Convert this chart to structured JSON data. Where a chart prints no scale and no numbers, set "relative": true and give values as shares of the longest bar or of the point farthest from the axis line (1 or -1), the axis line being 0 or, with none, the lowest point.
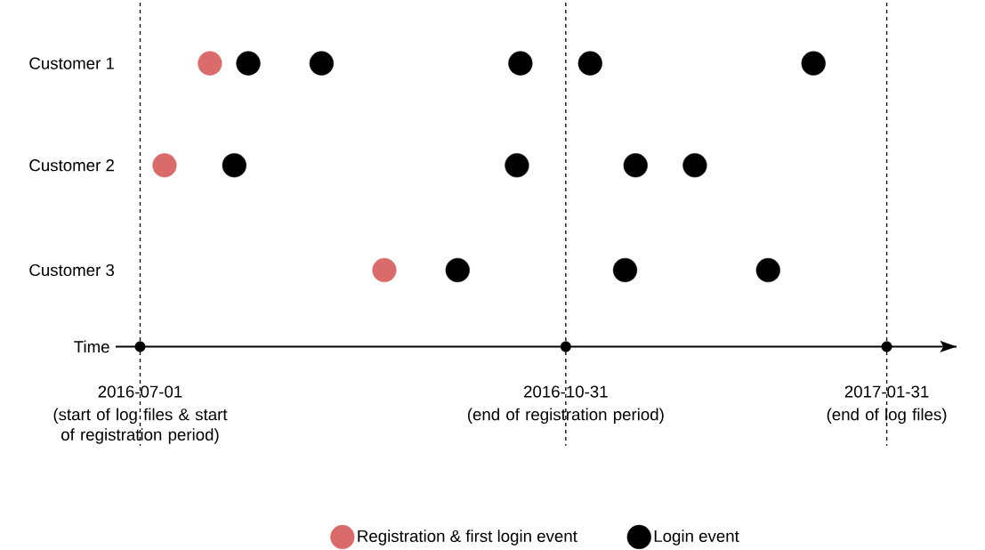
{
  "chart_data": {
    "type": "scatter",
    "relative": true,
    "xlabel": "Time",
    "xlim": [
      "2016-06-24",
      "2017-02-20"
    ],
    "xticks": [
      {
        "value": "2016-07-01",
        "label": "2016-07-01"
      },
      {
        "value": "2016-10-31",
        "label": "2016-10-31"
      },
      {
        "value": "2017-01-31",
        "label": "2017-01-31"
      }
    ],
    "series": [
      {
        "name": "Registration & first login event",
        "color": "#d96b6b",
        "x": [
          "2016-07-21",
          "2016-07-08",
          "2016-09-09"
        ],
        "values": [
          1,
          0.64,
          0.27
        ]
      },
      {
        "name": "Login event",
        "color": "#000000",
        "x": [
          "2016-08-01",
          "2016-08-22",
          "2016-10-18",
          "2016-11-07",
          "2017-01-10",
          "2016-07-28",
          "2016-10-17",
          "2016-11-20",
          "2016-12-07",
          "2016-09-30",
          "2016-11-17",
          "2016-12-28"
        ],
        "values": [
          1,
          1,
          1,
          1,
          1,
          0.64,
          0.64,
          0.64,
          0.64,
          0.27,
          0.27,
          0.27
        ]
      }
    ],
    "annotations": [
      "Customer 1",
      "Customer 2",
      "Customer 3"
    ],
    "ref_lines": [
      {
        "axis": "x",
        "value": "2016-07-01",
        "label": "(start of log files & start of registration period)",
        "line_style": "dashed"
      },
      {
        "axis": "x",
        "value": "2016-10-31",
        "label": "(end of registration period)",
        "line_style": "dashed"
      },
      {
        "axis": "x",
        "value": "2017-01-31",
        "label": "(end of log files)",
        "line_style": "dashed"
      }
    ],
    "marker": "circle",
    "grid": false,
    "legend": "bottom"
  }
}
